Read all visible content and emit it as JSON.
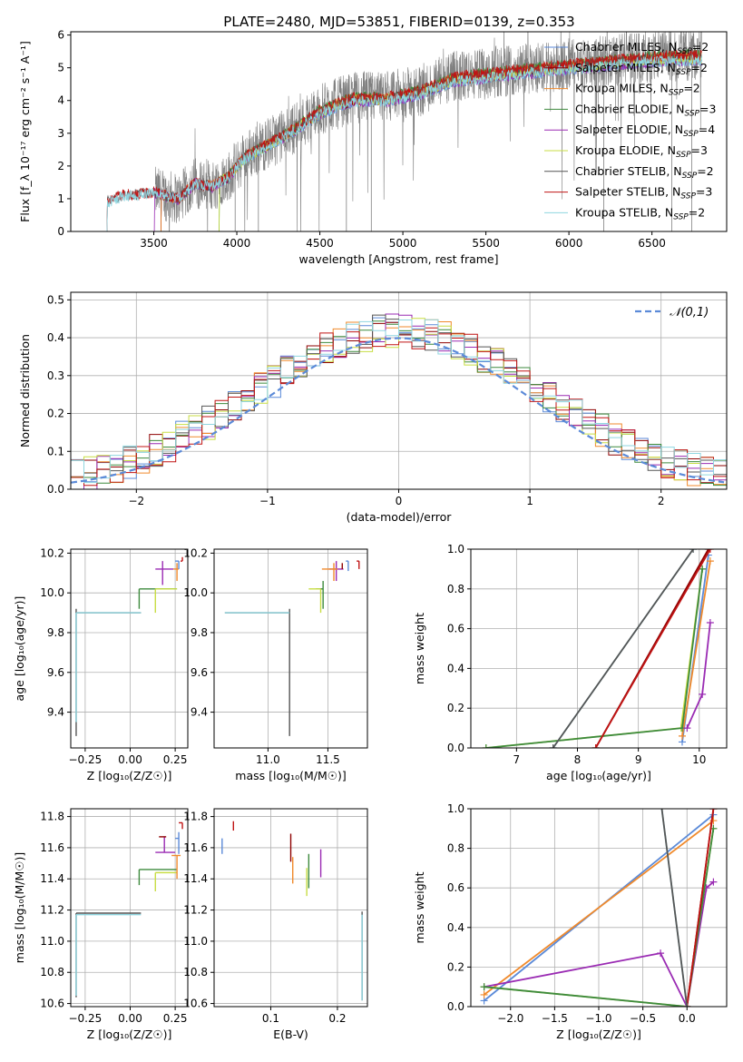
{
  "figure": {
    "title": "PLATE=2480, MJD=53851, FIBERID=0139, z=0.353"
  },
  "colors": {
    "Chabrier MILES": "#5b8ad8",
    "Salpeter MILES": "#8e0000",
    "Kroupa MILES": "#f08a2c",
    "Chabrier ELODIE": "#3d8a3d",
    "Salpeter ELODIE": "#9a2bb3",
    "Kroupa ELODIE": "#c8dd44",
    "Chabrier STELIB": "#555555",
    "Salpeter STELIB": "#c01414",
    "Kroupa STELIB": "#8fd6e0",
    "data": "#808080",
    "normal": "#5b8ad8"
  },
  "legend_models": [
    {
      "name": "Chabrier MILES",
      "nssp": "2"
    },
    {
      "name": "Salpeter MILES",
      "nssp": "2"
    },
    {
      "name": "Kroupa MILES",
      "nssp": "2"
    },
    {
      "name": "Chabrier ELODIE",
      "nssp": "3"
    },
    {
      "name": "Salpeter ELODIE",
      "nssp": "4"
    },
    {
      "name": "Kroupa ELODIE",
      "nssp": "3"
    },
    {
      "name": "Chabrier STELIB",
      "nssp": "2"
    },
    {
      "name": "Salpeter STELIB",
      "nssp": "3"
    },
    {
      "name": "Kroupa STELIB",
      "nssp": "2"
    }
  ],
  "chart_data": [
    {
      "id": "spectrum",
      "type": "line",
      "xlabel": "wavelength [Angstrom, rest frame]",
      "ylabel": "Flux [f_λ 10⁻¹⁷ erg cm⁻² s⁻¹ A⁻¹]",
      "xlim": [
        3000,
        6950
      ],
      "ylim": [
        0,
        6.1
      ],
      "xticks": [
        3500,
        4000,
        4500,
        5000,
        5500,
        6000,
        6500
      ],
      "yticks": [
        0,
        1,
        2,
        3,
        4,
        5,
        6
      ],
      "legend_position": "top-right",
      "continuum_anchor_points": [
        [
          3210,
          0.0
        ],
        [
          3215,
          0.9
        ],
        [
          3300,
          1.1
        ],
        [
          3500,
          1.2
        ],
        [
          3650,
          1.0
        ],
        [
          3750,
          1.5
        ],
        [
          3850,
          1.4
        ],
        [
          3950,
          1.7
        ],
        [
          4050,
          2.3
        ],
        [
          4300,
          3.0
        ],
        [
          4500,
          3.7
        ],
        [
          4700,
          4.1
        ],
        [
          4900,
          4.1
        ],
        [
          5100,
          4.3
        ],
        [
          5300,
          4.7
        ],
        [
          5600,
          4.9
        ],
        [
          5900,
          5.05
        ],
        [
          6200,
          5.2
        ],
        [
          6500,
          5.35
        ],
        [
          6800,
          5.4
        ]
      ],
      "observed_range": [
        3510,
        6800
      ]
    },
    {
      "id": "residuals",
      "type": "histogram",
      "xlabel": "(data-model)/error",
      "ylabel": "Normed distribution",
      "xlim": [
        -2.5,
        2.5
      ],
      "ylim": [
        0,
        0.52
      ],
      "xticks": [
        -2,
        -1,
        0,
        1,
        2
      ],
      "yticks": [
        0.0,
        0.1,
        0.2,
        0.3,
        0.4,
        0.5
      ],
      "normal_label": "𝒩(0,1)",
      "legend_position": "top-right"
    },
    {
      "id": "age_vs_Z",
      "type": "errorbar",
      "xlabel": "Z [log₁₀(Z/Z☉)]",
      "ylabel": "age  [log₁₀(age/yr)]",
      "xlim": [
        -0.33,
        0.32
      ],
      "ylim": [
        9.22,
        10.22
      ],
      "xticks": [
        -0.25,
        0.0,
        0.25
      ],
      "yticks": [
        9.4,
        9.6,
        9.8,
        10.0,
        10.2
      ],
      "points": [
        {
          "model": "Chabrier STELIB",
          "x": -0.3,
          "y": 9.9,
          "xerr": [
            0.0,
            0.36
          ],
          "yerr": [
            0.62,
            0.02
          ]
        },
        {
          "model": "Kroupa STELIB",
          "x": -0.3,
          "y": 9.9,
          "xerr": [
            0.0,
            0.36
          ],
          "yerr": [
            0.55,
            0.0
          ]
        },
        {
          "model": "Chabrier ELODIE",
          "x": 0.05,
          "y": 10.02,
          "xerr": [
            0.0,
            0.21
          ],
          "yerr": [
            0.1,
            0.0
          ]
        },
        {
          "model": "Kroupa ELODIE",
          "x": 0.14,
          "y": 10.02,
          "xerr": [
            0.0,
            0.12
          ],
          "yerr": [
            0.12,
            0.0
          ]
        },
        {
          "model": "Salpeter ELODIE",
          "x": 0.18,
          "y": 10.12,
          "xerr": [
            0.04,
            0.06
          ],
          "yerr": [
            0.08,
            0.04
          ]
        },
        {
          "model": "Kroupa MILES",
          "x": 0.26,
          "y": 10.12,
          "xerr": [
            0.02,
            0.01
          ],
          "yerr": [
            0.06,
            0.03
          ]
        },
        {
          "model": "Chabrier MILES",
          "x": 0.27,
          "y": 10.16,
          "xerr": [
            0.02,
            0.0
          ],
          "yerr": [
            0.04,
            0.0
          ]
        },
        {
          "model": "Salpeter STELIB",
          "x": 0.29,
          "y": 10.16,
          "xerr": [
            0.01,
            0.0
          ],
          "yerr": [
            0.0,
            0.02
          ]
        }
      ]
    },
    {
      "id": "age_vs_mass",
      "type": "errorbar",
      "xlabel": "mass [log₁₀(M/M☉)]",
      "ylabel": "",
      "xlim": [
        10.55,
        11.83
      ],
      "ylim": [
        9.22,
        10.22
      ],
      "xticks": [
        11.0,
        11.5
      ],
      "yticks": [
        9.4,
        9.6,
        9.8,
        10.0,
        10.2
      ],
      "points": [
        {
          "model": "Chabrier STELIB",
          "x": 11.18,
          "y": 9.9,
          "xerr": [
            0.54,
            0.0
          ],
          "yerr": [
            0.62,
            0.02
          ]
        },
        {
          "model": "Kroupa STELIB",
          "x": 11.18,
          "y": 9.9,
          "xerr": [
            0.54,
            0.0
          ],
          "yerr": [
            0.0,
            0.0
          ]
        },
        {
          "model": "Chabrier ELODIE",
          "x": 11.46,
          "y": 10.02,
          "xerr": [
            0.06,
            0.0
          ],
          "yerr": [
            0.1,
            0.04
          ]
        },
        {
          "model": "Kroupa ELODIE",
          "x": 11.44,
          "y": 10.02,
          "xerr": [
            0.1,
            0.0
          ],
          "yerr": [
            0.12,
            0.0
          ]
        },
        {
          "model": "Salpeter ELODIE",
          "x": 11.57,
          "y": 10.12,
          "xerr": [
            0.06,
            0.06
          ],
          "yerr": [
            0.06,
            0.04
          ]
        },
        {
          "model": "Kroupa MILES",
          "x": 11.55,
          "y": 10.12,
          "xerr": [
            0.1,
            0.03
          ],
          "yerr": [
            0.06,
            0.03
          ]
        },
        {
          "model": "Chabrier MILES",
          "x": 11.67,
          "y": 10.16,
          "xerr": [
            0.02,
            0.0
          ],
          "yerr": [
            0.05,
            0.0
          ]
        },
        {
          "model": "Salpeter STELIB",
          "x": 11.76,
          "y": 10.16,
          "xerr": [
            0.02,
            0.0
          ],
          "yerr": [
            0.04,
            0.0
          ]
        },
        {
          "model": "Salpeter MILES",
          "x": 11.62,
          "y": 10.15,
          "xerr": [
            0.0,
            0.0
          ],
          "yerr": [
            0.03,
            0.0
          ]
        }
      ]
    },
    {
      "id": "mass_weight_vs_age",
      "type": "line",
      "xlabel": "age  [log₁₀(age/yr)]",
      "ylabel": "mass weight",
      "xlim": [
        6.25,
        10.45
      ],
      "ylim": [
        0,
        1
      ],
      "xticks": [
        7,
        8,
        9,
        10
      ],
      "yticks": [
        0.0,
        0.2,
        0.4,
        0.6,
        0.8,
        1.0
      ],
      "series": [
        {
          "model": "Chabrier MILES",
          "x": [
            9.72,
            10.15
          ],
          "y": [
            0.03,
            0.97
          ]
        },
        {
          "model": "Kroupa MILES",
          "x": [
            9.72,
            10.18
          ],
          "y": [
            0.06,
            0.94
          ]
        },
        {
          "model": "Salpeter MILES",
          "x": [
            8.3,
            10.15
          ],
          "y": [
            0.0,
            1.0
          ]
        },
        {
          "model": "Kroupa ELODIE",
          "x": [
            6.5,
            9.7,
            10.05
          ],
          "y": [
            0.0,
            0.1,
            0.9
          ]
        },
        {
          "model": "Chabrier ELODIE",
          "x": [
            6.5,
            9.72,
            10.05
          ],
          "y": [
            0.0,
            0.1,
            0.9
          ]
        },
        {
          "model": "Salpeter ELODIE",
          "x": [
            9.8,
            10.05,
            10.18
          ],
          "y": [
            0.1,
            0.27,
            0.63
          ]
        },
        {
          "model": "Kroupa STELIB",
          "x": [
            7.6,
            9.9
          ],
          "y": [
            0.0,
            1.0
          ]
        },
        {
          "model": "Chabrier STELIB",
          "x": [
            7.6,
            9.9
          ],
          "y": [
            0.0,
            1.0
          ]
        },
        {
          "model": "Salpeter STELIB",
          "x": [
            8.3,
            10.18
          ],
          "y": [
            0.0,
            1.0
          ]
        }
      ]
    },
    {
      "id": "mass_vs_Z",
      "type": "errorbar",
      "xlabel": "Z [log₁₀(Z/Z☉)]",
      "ylabel": "mass [log₁₀(M/M☉)]",
      "xlim": [
        -0.33,
        0.32
      ],
      "ylim": [
        10.58,
        11.85
      ],
      "xticks": [
        -0.25,
        0.0,
        0.25
      ],
      "yticks": [
        10.6,
        10.8,
        11.0,
        11.2,
        11.4,
        11.6,
        11.8
      ],
      "points": [
        {
          "model": "Chabrier STELIB",
          "x": -0.3,
          "y": 11.18,
          "xerr": [
            0.0,
            0.36
          ],
          "yerr": [
            0.54,
            0.0
          ]
        },
        {
          "model": "Kroupa STELIB",
          "x": -0.3,
          "y": 11.17,
          "xerr": [
            0.0,
            0.36
          ],
          "yerr": [
            0.52,
            0.0
          ]
        },
        {
          "model": "Chabrier ELODIE",
          "x": 0.05,
          "y": 11.46,
          "xerr": [
            0.0,
            0.21
          ],
          "yerr": [
            0.1,
            0.0
          ]
        },
        {
          "model": "Kroupa ELODIE",
          "x": 0.14,
          "y": 11.44,
          "xerr": [
            0.0,
            0.12
          ],
          "yerr": [
            0.12,
            0.0
          ]
        },
        {
          "model": "Salpeter ELODIE",
          "x": 0.19,
          "y": 11.57,
          "xerr": [
            0.05,
            0.06
          ],
          "yerr": [
            0.0,
            0.1
          ]
        },
        {
          "model": "Kroupa MILES",
          "x": 0.26,
          "y": 11.55,
          "xerr": [
            0.03,
            0.02
          ],
          "yerr": [
            0.15,
            0.0
          ]
        },
        {
          "model": "Chabrier MILES",
          "x": 0.27,
          "y": 11.66,
          "xerr": [
            0.02,
            0.0
          ],
          "yerr": [
            0.1,
            0.04
          ]
        },
        {
          "model": "Salpeter STELIB",
          "x": 0.29,
          "y": 11.76,
          "xerr": [
            0.02,
            0.0
          ],
          "yerr": [
            0.04,
            0.0
          ]
        },
        {
          "model": "Salpeter MILES",
          "x": 0.2,
          "y": 11.67,
          "xerr": [
            0.04,
            0.0
          ],
          "yerr": [
            0.0,
            0.0
          ]
        }
      ]
    },
    {
      "id": "mass_vs_EBV",
      "type": "errorbar",
      "xlabel": "E(B-V)",
      "ylabel": "",
      "xlim": [
        0.015,
        0.245
      ],
      "ylim": [
        10.58,
        11.85
      ],
      "xticks": [
        0.1,
        0.2
      ],
      "yticks": [
        10.6,
        10.8,
        11.0,
        11.2,
        11.4,
        11.6,
        11.8
      ],
      "points": [
        {
          "model": "Chabrier MILES",
          "x": 0.027,
          "y": 11.62,
          "xerr": [
            0.0,
            0.0
          ],
          "yerr": [
            0.06,
            0.04
          ]
        },
        {
          "model": "Salpeter STELIB",
          "x": 0.044,
          "y": 11.74,
          "xerr": [
            0.0,
            0.0
          ],
          "yerr": [
            0.03,
            0.03
          ]
        },
        {
          "model": "Kroupa MILES",
          "x": 0.133,
          "y": 11.45,
          "xerr": [
            0.0,
            0.0
          ],
          "yerr": [
            0.08,
            0.09
          ]
        },
        {
          "model": "Salpeter MILES",
          "x": 0.13,
          "y": 11.6,
          "xerr": [
            0.0,
            0.0
          ],
          "yerr": [
            0.09,
            0.09
          ]
        },
        {
          "model": "Kroupa ELODIE",
          "x": 0.154,
          "y": 11.38,
          "xerr": [
            0.0,
            0.0
          ],
          "yerr": [
            0.09,
            0.09
          ]
        },
        {
          "model": "Chabrier ELODIE",
          "x": 0.157,
          "y": 11.44,
          "xerr": [
            0.0,
            0.0
          ],
          "yerr": [
            0.1,
            0.12
          ]
        },
        {
          "model": "Salpeter ELODIE",
          "x": 0.175,
          "y": 11.5,
          "xerr": [
            0.0,
            0.0
          ],
          "yerr": [
            0.09,
            0.09
          ]
        },
        {
          "model": "Chabrier STELIB",
          "x": 0.237,
          "y": 10.92,
          "xerr": [
            0.0,
            0.0
          ],
          "yerr": [
            0.3,
            0.27
          ]
        },
        {
          "model": "Kroupa STELIB",
          "x": 0.237,
          "y": 10.9,
          "xerr": [
            0.0,
            0.0
          ],
          "yerr": [
            0.28,
            0.27
          ]
        }
      ]
    },
    {
      "id": "mass_weight_vs_Z",
      "type": "line",
      "xlabel": "Z [log₁₀(Z/Z☉)]",
      "ylabel": "mass weight",
      "xlim": [
        -2.45,
        0.45
      ],
      "ylim": [
        0,
        1
      ],
      "xticks": [
        -2.0,
        -1.5,
        -1.0,
        -0.5,
        0.0
      ],
      "yticks": [
        0.0,
        0.2,
        0.4,
        0.6,
        0.8,
        1.0
      ],
      "series": [
        {
          "model": "Chabrier MILES",
          "x": [
            -2.3,
            0.3
          ],
          "y": [
            0.03,
            0.97
          ]
        },
        {
          "model": "Kroupa MILES",
          "x": [
            -2.3,
            0.3
          ],
          "y": [
            0.06,
            0.94
          ]
        },
        {
          "model": "Salpeter ELODIE",
          "x": [
            -2.3,
            -0.3,
            0.0,
            0.22,
            0.3
          ],
          "y": [
            0.1,
            0.27,
            0.0,
            0.6,
            0.63
          ]
        },
        {
          "model": "Kroupa ELODIE",
          "x": [
            -2.3,
            0.0,
            0.3
          ],
          "y": [
            0.1,
            0.0,
            0.9
          ]
        },
        {
          "model": "Chabrier ELODIE",
          "x": [
            -2.3,
            0.0,
            0.3
          ],
          "y": [
            0.1,
            0.0,
            0.9
          ]
        },
        {
          "model": "Salpeter MILES",
          "x": [
            0.0,
            0.3
          ],
          "y": [
            0.0,
            1.0
          ]
        },
        {
          "model": "Salpeter STELIB",
          "x": [
            0.0,
            0.3
          ],
          "y": [
            0.0,
            1.0
          ]
        },
        {
          "model": "Kroupa STELIB",
          "x": [
            -0.3,
            0.0
          ],
          "y": [
            1.05,
            0.0
          ]
        },
        {
          "model": "Chabrier STELIB",
          "x": [
            -0.3,
            0.0
          ],
          "y": [
            1.05,
            0.0
          ]
        }
      ]
    }
  ]
}
